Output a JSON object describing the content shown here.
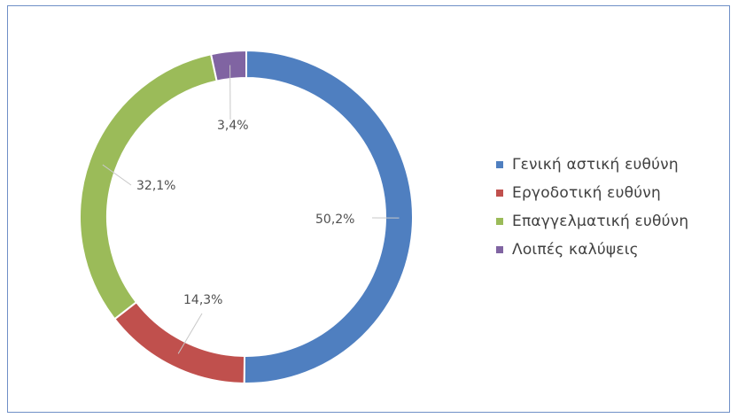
{
  "chart_data": {
    "type": "pie",
    "variant": "donut",
    "title": "",
    "categories": [
      "Γενική αστική ευθύνη",
      "Εργοδοτική ευθύνη",
      "Επαγγελματική ευθύνη",
      "Λοιπές καλύψεις"
    ],
    "values": [
      50.2,
      14.3,
      32.1,
      3.4
    ],
    "labels": [
      "50,2%",
      "14,3%",
      "32,1%",
      "3,4%"
    ],
    "colors": [
      "#4f7fc0",
      "#c0504d",
      "#9bbb59",
      "#8064a2"
    ],
    "legend": {
      "placement": "right",
      "items": [
        "Γενική αστική ευθύνη",
        "Εργοδοτική ευθύνη",
        "Επαγγελματική ευθύνη",
        "Λοιπές καλύψεις"
      ]
    }
  }
}
